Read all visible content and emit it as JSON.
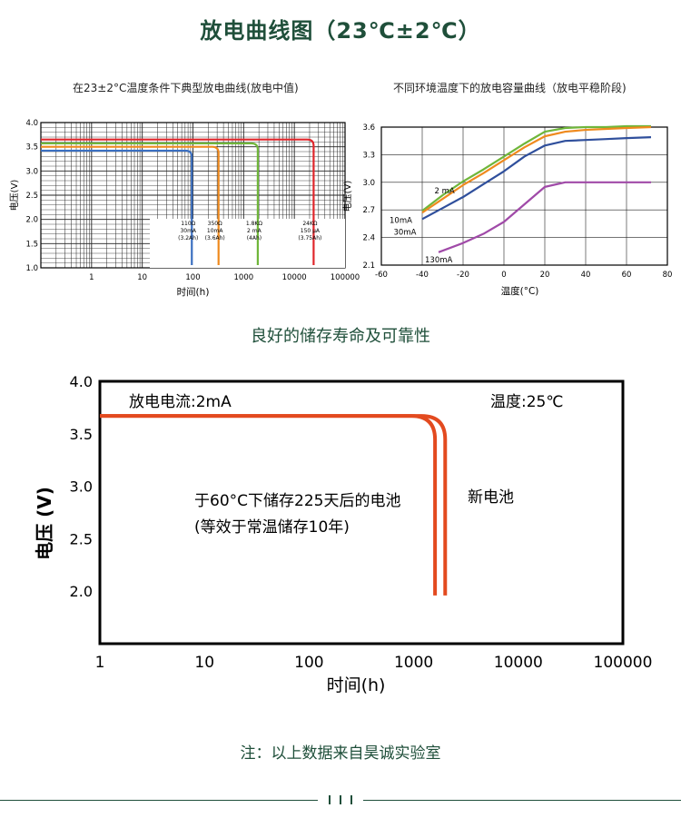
{
  "page": {
    "title": "放电曲线图（23℃±2℃）",
    "section_title": "良好的储存寿命及可靠性",
    "note": "注：以上数据来自昊诚实验室"
  },
  "chart_data": [
    {
      "type": "line",
      "title": "在23±2°C温度条件下典型放电曲线(放电中值)",
      "xlabel": "时间(h)",
      "ylabel": "电压(V)",
      "xscale": "log",
      "xlim": [
        0.1,
        100000
      ],
      "ylim": [
        1.0,
        4.0
      ],
      "xticks": [
        {
          "v": 1,
          "label": "1"
        },
        {
          "v": 10,
          "label": "10"
        },
        {
          "v": 100,
          "label": "100"
        },
        {
          "v": 1000,
          "label": "1000"
        },
        {
          "v": 10000,
          "label": "10000"
        },
        {
          "v": 100000,
          "label": "100000"
        }
      ],
      "yticks": [
        {
          "v": 1.0,
          "label": "1.0"
        },
        {
          "v": 1.5,
          "label": "1.5"
        },
        {
          "v": 2.0,
          "label": "2.0"
        },
        {
          "v": 2.5,
          "label": "2.5"
        },
        {
          "v": 3.0,
          "label": "3.0"
        },
        {
          "v": 3.5,
          "label": "3.5"
        },
        {
          "v": 4.0,
          "label": "4.0"
        }
      ],
      "grid": true,
      "series": [
        {
          "name": "110Ω 30mA (3.2Ah)",
          "load": "110Ω",
          "current": "30mA",
          "capacity": "(3.2Ah)",
          "color": "#3b6fc0",
          "voltage": 3.42,
          "end_time": 95
        },
        {
          "name": "350Ω 10mA (3.6Ah)",
          "load": "350Ω",
          "current": "10mA",
          "capacity": "(3.6Ah)",
          "color": "#ef8a1e",
          "voltage": 3.5,
          "end_time": 320
        },
        {
          "name": "1.8KΩ 2mA (4Ah)",
          "load": "1.8KΩ",
          "current": "2 mA",
          "capacity": "(4Ah)",
          "color": "#6fb63a",
          "voltage": 3.57,
          "end_time": 1900
        },
        {
          "name": "24KΩ 150μA (3.75Ah)",
          "load": "24KΩ",
          "current": "150 μA",
          "capacity": "(3.75Ah)",
          "color": "#e0262b",
          "voltage": 3.65,
          "end_time": 24000
        }
      ]
    },
    {
      "type": "line",
      "title": "不同环境温度下的放电容量曲线（放电平稳阶段)",
      "xlabel": "温度(°C)",
      "ylabel": "电压(V)",
      "xlim": [
        -60,
        80
      ],
      "ylim": [
        2.1,
        3.6
      ],
      "xticks": [
        {
          "v": -60,
          "label": "-60"
        },
        {
          "v": -40,
          "label": "-40"
        },
        {
          "v": -20,
          "label": "-20"
        },
        {
          "v": 0,
          "label": "0"
        },
        {
          "v": 20,
          "label": "20"
        },
        {
          "v": 40,
          "label": "40"
        },
        {
          "v": 60,
          "label": "60"
        },
        {
          "v": 80,
          "label": "80"
        }
      ],
      "yticks": [
        {
          "v": 2.1,
          "label": "2.1"
        },
        {
          "v": 2.4,
          "label": "2.4"
        },
        {
          "v": 2.7,
          "label": "2.7"
        },
        {
          "v": 3.0,
          "label": "3.0"
        },
        {
          "v": 3.3,
          "label": "3.3"
        },
        {
          "v": 3.6,
          "label": "3.6"
        }
      ],
      "grid": true,
      "series": [
        {
          "name": "2 mA",
          "color": "#6fb63a",
          "x": [
            -40,
            -30,
            -20,
            -10,
            0,
            10,
            20,
            30,
            40,
            50,
            60,
            72
          ],
          "y": [
            2.69,
            2.86,
            3.01,
            3.14,
            3.28,
            3.42,
            3.55,
            3.59,
            3.6,
            3.6,
            3.61,
            3.61
          ]
        },
        {
          "name": "10mA",
          "color": "#ef8a1e",
          "x": [
            -40,
            -30,
            -20,
            -10,
            0,
            10,
            20,
            30,
            40,
            50,
            60,
            72
          ],
          "y": [
            2.67,
            2.82,
            2.97,
            3.1,
            3.24,
            3.38,
            3.5,
            3.55,
            3.57,
            3.58,
            3.59,
            3.6
          ]
        },
        {
          "name": "30mA",
          "color": "#2f4f9c",
          "x": [
            -40,
            -30,
            -20,
            -10,
            0,
            10,
            20,
            30,
            40,
            50,
            60,
            72
          ],
          "y": [
            2.6,
            2.72,
            2.84,
            2.98,
            3.12,
            3.28,
            3.4,
            3.45,
            3.46,
            3.47,
            3.48,
            3.49
          ]
        },
        {
          "name": "130mA",
          "color": "#a04aa8",
          "x": [
            -32,
            -20,
            -10,
            0,
            10,
            20,
            30,
            40,
            50,
            60,
            72
          ],
          "y": [
            2.24,
            2.34,
            2.44,
            2.57,
            2.76,
            2.95,
            3.0,
            3.0,
            3.0,
            3.0,
            3.0
          ]
        }
      ]
    },
    {
      "type": "line",
      "xlabel": "时间(h)",
      "ylabel": "电压 (V)",
      "xscale": "log",
      "xlim": [
        1,
        100000
      ],
      "ylim": [
        1.5,
        4.0
      ],
      "xticks": [
        {
          "v": 1,
          "label": "1"
        },
        {
          "v": 10,
          "label": "10"
        },
        {
          "v": 100,
          "label": "100"
        },
        {
          "v": 1000,
          "label": "1000"
        },
        {
          "v": 10000,
          "label": "10000"
        },
        {
          "v": 100000,
          "label": "100000"
        }
      ],
      "yticks": [
        {
          "v": 2.0,
          "label": "2.0"
        },
        {
          "v": 2.5,
          "label": "2.5"
        },
        {
          "v": 3.0,
          "label": "3.0"
        },
        {
          "v": 3.5,
          "label": "3.5"
        },
        {
          "v": 4.0,
          "label": "4.0"
        }
      ],
      "grid": false,
      "line_color": "#e34a1f",
      "annotations": {
        "current": "放电电流:2mA",
        "temperature": "温度:25℃",
        "stored_line1": "于60°C下储存225天后的电池",
        "stored_line2": "(等效于常温储存10年)",
        "new": "新电池"
      },
      "series": [
        {
          "name": "于60°C下储存225天后的电池",
          "voltage": 3.67,
          "end_time": 1600,
          "end_voltage": 1.96
        },
        {
          "name": "新电池",
          "voltage": 3.67,
          "end_time": 2000,
          "end_voltage": 1.96
        }
      ]
    }
  ]
}
